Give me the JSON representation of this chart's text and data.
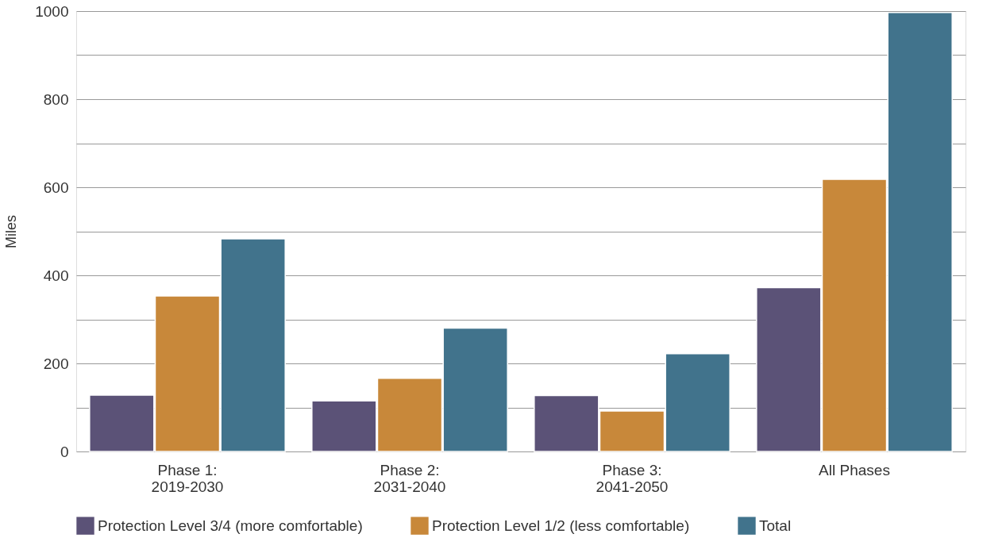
{
  "chart_data": {
    "type": "bar",
    "categories": [
      "Phase 1:\n2019-2030",
      "Phase 2:\n2031-2040",
      "Phase 3:\n2041-2050",
      "All Phases"
    ],
    "series": [
      {
        "name": "Protection Level 3/4 (more comfortable)",
        "color": "#5b5277",
        "values": [
          128,
          115,
          127,
          372
        ]
      },
      {
        "name": "Protection Level 1/2 (less comfortable)",
        "color": "#c8883a",
        "values": [
          353,
          166,
          92,
          618
        ]
      },
      {
        "name": "Total",
        "color": "#41738c",
        "values": [
          483,
          280,
          222,
          997
        ]
      }
    ],
    "ylabel": "Miles",
    "ylim": [
      0,
      1000
    ],
    "yticks": [
      0,
      {
        "value": 100,
        "label": null
      },
      200,
      {
        "value": 300,
        "label": null
      },
      400,
      {
        "value": 500,
        "label": null
      },
      600,
      {
        "value": 700,
        "label": null
      },
      800,
      {
        "value": 900,
        "label": null
      },
      1000
    ],
    "grid": "y",
    "legend": "bottom"
  }
}
